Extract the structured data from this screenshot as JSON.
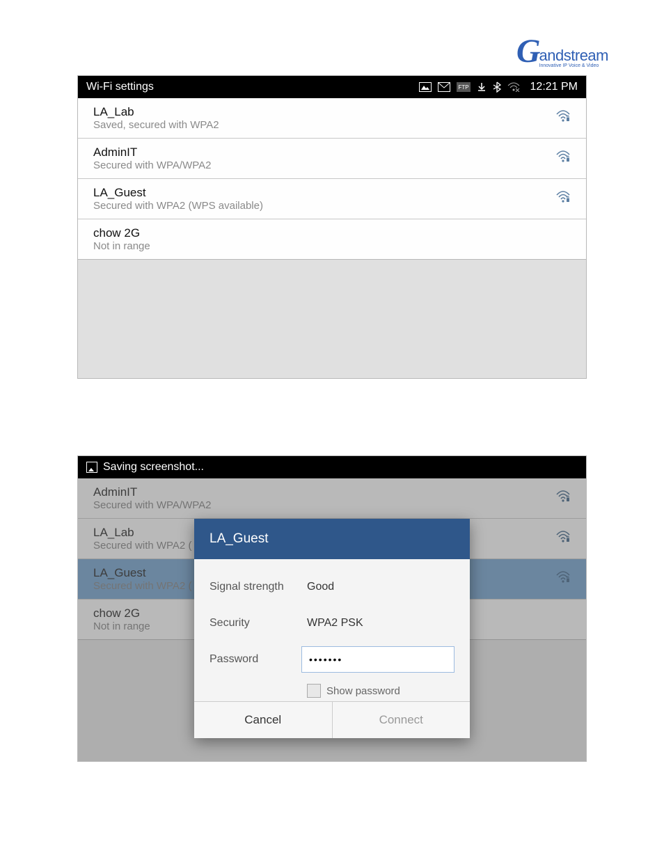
{
  "logo": {
    "mark": "G",
    "word": "andstream",
    "tag": "Innovative IP Voice & Video"
  },
  "frame1": {
    "title": "Wi-Fi settings",
    "time": "12:21 PM",
    "items": [
      {
        "ssid": "LA_Lab",
        "sub": "Saved, secured with WPA2",
        "icon": true
      },
      {
        "ssid": "AdminIT",
        "sub": "Secured with WPA/WPA2",
        "icon": true
      },
      {
        "ssid": "LA_Guest",
        "sub": "Secured with WPA2 (WPS available)",
        "icon": true
      },
      {
        "ssid": "chow 2G",
        "sub": "Not in range",
        "icon": false
      }
    ]
  },
  "frame2": {
    "title": "Saving screenshot...",
    "items": [
      {
        "ssid": "AdminIT",
        "sub": "Secured with WPA/WPA2",
        "icon": true,
        "selected": false
      },
      {
        "ssid": "LA_Lab",
        "sub": "Secured with WPA2 (",
        "icon": true,
        "selected": false
      },
      {
        "ssid": "LA_Guest",
        "sub": "Secured with WPA2 (",
        "icon": true,
        "selected": true
      },
      {
        "ssid": "chow 2G",
        "sub": "Not in range",
        "icon": false,
        "selected": false
      }
    ]
  },
  "dialog": {
    "title": "LA_Guest",
    "signal_label": "Signal strength",
    "signal_value": "Good",
    "security_label": "Security",
    "security_value": "WPA2 PSK",
    "password_label": "Password",
    "password_value": "•••••••",
    "showpw_label": "Show password",
    "cancel": "Cancel",
    "connect": "Connect"
  }
}
